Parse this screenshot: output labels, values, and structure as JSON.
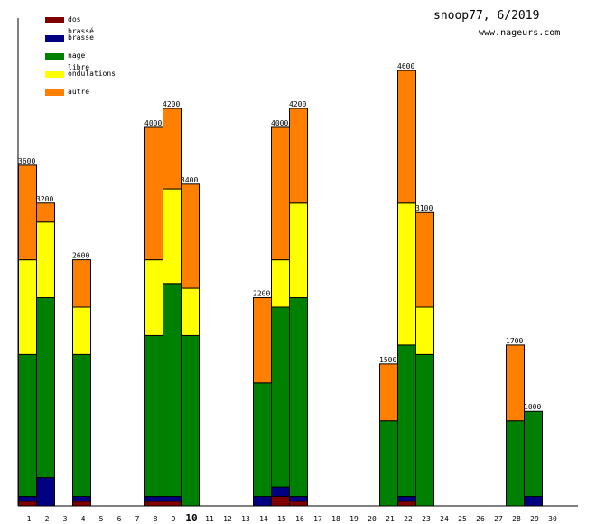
{
  "title": "snoop77, 6/2019",
  "site": "www.nageurs.com",
  "chart_data": {
    "type": "bar",
    "stacked": true,
    "title": "snoop77, 6/2019",
    "xlabel": "",
    "ylabel": "",
    "ylim": [
      0,
      5100
    ],
    "highlight_day": 10,
    "legend_position": "top-left",
    "categories": [
      1,
      2,
      3,
      4,
      5,
      6,
      7,
      8,
      9,
      10,
      11,
      12,
      13,
      14,
      15,
      16,
      17,
      18,
      19,
      20,
      21,
      22,
      23,
      24,
      25,
      26,
      27,
      28,
      29,
      30
    ],
    "series": [
      {
        "name": "dos brassé",
        "color": "#800000",
        "values": [
          50,
          0,
          0,
          50,
          0,
          0,
          0,
          50,
          50,
          0,
          0,
          0,
          0,
          0,
          100,
          50,
          0,
          0,
          0,
          0,
          0,
          50,
          0,
          0,
          0,
          0,
          0,
          0,
          0,
          0
        ]
      },
      {
        "name": "brasse",
        "color": "#000080",
        "values": [
          50,
          300,
          0,
          50,
          0,
          0,
          0,
          50,
          50,
          0,
          0,
          0,
          0,
          100,
          100,
          50,
          0,
          0,
          0,
          0,
          0,
          50,
          0,
          0,
          0,
          0,
          0,
          0,
          100,
          0
        ]
      },
      {
        "name": "nage libre",
        "color": "#008000",
        "values": [
          1500,
          1900,
          0,
          1500,
          0,
          0,
          0,
          1700,
          2250,
          1800,
          0,
          0,
          0,
          1200,
          1900,
          2100,
          0,
          0,
          0,
          0,
          900,
          1600,
          1600,
          0,
          0,
          0,
          0,
          900,
          900,
          0
        ]
      },
      {
        "name": "ondulations",
        "color": "#ffff00",
        "values": [
          1000,
          800,
          0,
          500,
          0,
          0,
          0,
          800,
          1000,
          500,
          0,
          0,
          0,
          0,
          500,
          1000,
          0,
          0,
          0,
          0,
          0,
          1500,
          500,
          0,
          0,
          0,
          0,
          0,
          0,
          0
        ]
      },
      {
        "name": "autre",
        "color": "#ff8000",
        "values": [
          1000,
          200,
          0,
          500,
          0,
          0,
          0,
          1400,
          850,
          1100,
          0,
          0,
          0,
          900,
          1400,
          1000,
          0,
          0,
          0,
          0,
          600,
          1400,
          1000,
          0,
          0,
          0,
          0,
          800,
          0,
          0
        ]
      }
    ],
    "totals": [
      "3600",
      "3200",
      "",
      "2600",
      "",
      "",
      "",
      "4000",
      "4200",
      "3400",
      "",
      "",
      "",
      "2200",
      "4000",
      "4200",
      "",
      "",
      "",
      "",
      "1500",
      "4600",
      "3100",
      "",
      "",
      "",
      "",
      "1700",
      "1000",
      ""
    ]
  }
}
